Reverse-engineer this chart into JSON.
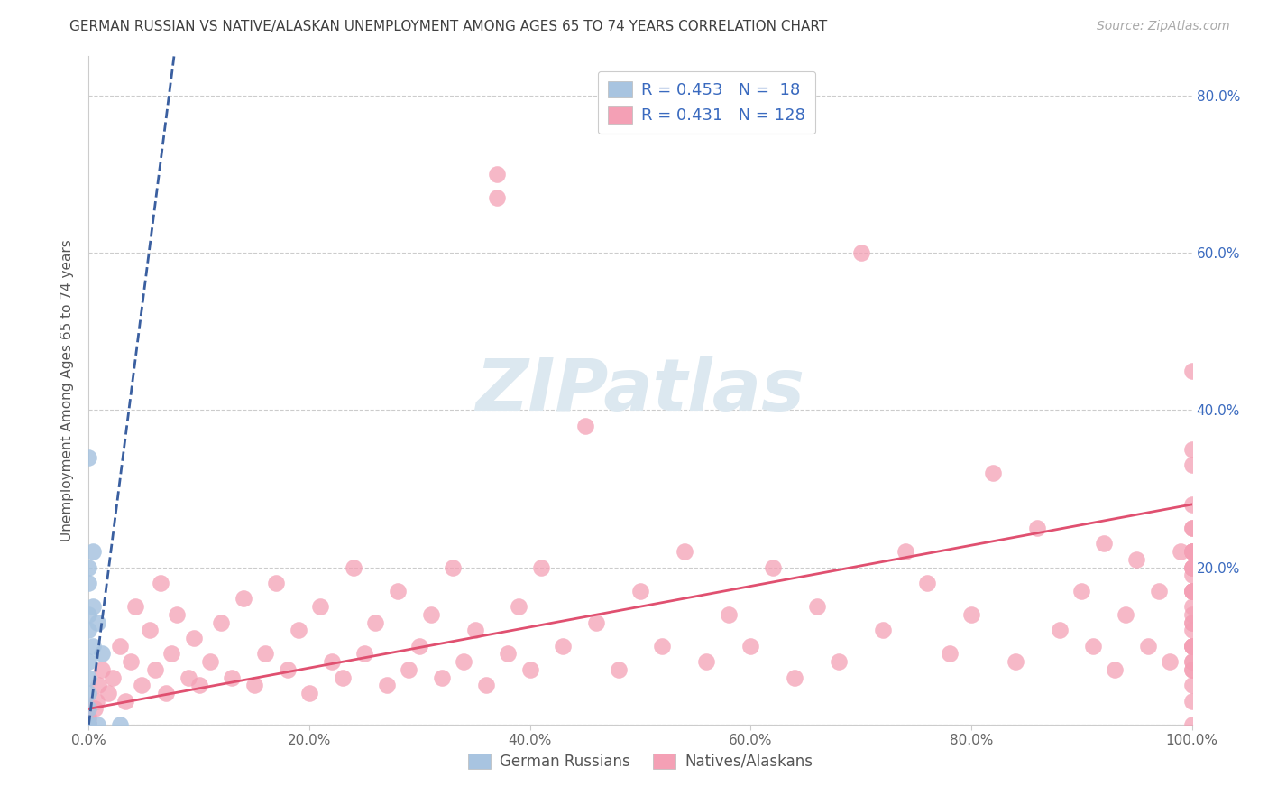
{
  "title": "GERMAN RUSSIAN VS NATIVE/ALASKAN UNEMPLOYMENT AMONG AGES 65 TO 74 YEARS CORRELATION CHART",
  "source": "Source: ZipAtlas.com",
  "ylabel": "Unemployment Among Ages 65 to 74 years",
  "ytick_values": [
    0.0,
    0.2,
    0.4,
    0.6,
    0.8
  ],
  "ytick_labels_right": [
    "",
    "20.0%",
    "40.0%",
    "60.0%",
    "80.0%"
  ],
  "xtick_values": [
    0.0,
    0.2,
    0.4,
    0.6,
    0.8,
    1.0
  ],
  "xtick_labels": [
    "0.0%",
    "20.0%",
    "40.0%",
    "60.0%",
    "80.0%",
    "100.0%"
  ],
  "xlim": [
    0,
    1.0
  ],
  "ylim": [
    0,
    0.85
  ],
  "legend_label1": "German Russians",
  "legend_label2": "Natives/Alaskans",
  "R1": "0.453",
  "N1": "18",
  "R2": "0.431",
  "N2": "128",
  "blue_color": "#a8c4e0",
  "blue_line_color": "#3a5fa0",
  "pink_color": "#f4a0b5",
  "pink_line_color": "#e05070",
  "title_color": "#404040",
  "source_color": "#aaaaaa",
  "legend_R_color": "#3a6abf",
  "background_color": "#ffffff",
  "watermark_color": "#dce8f0",
  "gr_x": [
    0.0,
    0.0,
    0.0,
    0.0,
    0.0,
    0.0,
    0.0,
    0.0,
    0.0,
    0.0,
    0.004,
    0.004,
    0.004,
    0.008,
    0.008,
    0.012,
    0.0,
    0.028
  ],
  "gr_y": [
    0.0,
    0.0,
    0.02,
    0.04,
    0.06,
    0.08,
    0.12,
    0.14,
    0.18,
    0.2,
    0.1,
    0.15,
    0.22,
    0.0,
    0.13,
    0.09,
    0.34,
    0.0
  ],
  "nat_x": [
    0.0,
    0.0,
    0.0,
    0.0,
    0.0,
    0.0,
    0.0,
    0.0,
    0.005,
    0.007,
    0.009,
    0.012,
    0.018,
    0.022,
    0.028,
    0.033,
    0.038,
    0.042,
    0.048,
    0.055,
    0.06,
    0.065,
    0.07,
    0.075,
    0.08,
    0.09,
    0.095,
    0.1,
    0.11,
    0.12,
    0.13,
    0.14,
    0.15,
    0.16,
    0.17,
    0.18,
    0.19,
    0.2,
    0.21,
    0.22,
    0.23,
    0.24,
    0.25,
    0.26,
    0.27,
    0.28,
    0.29,
    0.3,
    0.31,
    0.32,
    0.33,
    0.34,
    0.35,
    0.36,
    0.37,
    0.37,
    0.38,
    0.39,
    0.4,
    0.41,
    0.43,
    0.45,
    0.46,
    0.48,
    0.5,
    0.52,
    0.54,
    0.56,
    0.58,
    0.6,
    0.62,
    0.64,
    0.66,
    0.68,
    0.7,
    0.72,
    0.74,
    0.76,
    0.78,
    0.8,
    0.82,
    0.84,
    0.86,
    0.88,
    0.9,
    0.91,
    0.92,
    0.93,
    0.94,
    0.95,
    0.96,
    0.97,
    0.98,
    0.99,
    1.0,
    1.0,
    1.0,
    1.0,
    1.0,
    1.0,
    1.0,
    1.0,
    1.0,
    1.0,
    1.0,
    1.0,
    1.0,
    1.0,
    1.0,
    1.0,
    1.0,
    1.0,
    1.0,
    1.0,
    1.0,
    1.0,
    1.0,
    1.0,
    1.0,
    1.0,
    1.0,
    1.0,
    1.0,
    1.0,
    1.0,
    1.0,
    1.0,
    1.0
  ],
  "nat_y": [
    0.0,
    0.0,
    0.0,
    0.0,
    0.0,
    0.0,
    0.005,
    0.01,
    0.02,
    0.03,
    0.05,
    0.07,
    0.04,
    0.06,
    0.1,
    0.03,
    0.08,
    0.15,
    0.05,
    0.12,
    0.07,
    0.18,
    0.04,
    0.09,
    0.14,
    0.06,
    0.11,
    0.05,
    0.08,
    0.13,
    0.06,
    0.16,
    0.05,
    0.09,
    0.18,
    0.07,
    0.12,
    0.04,
    0.15,
    0.08,
    0.06,
    0.2,
    0.09,
    0.13,
    0.05,
    0.17,
    0.07,
    0.1,
    0.14,
    0.06,
    0.2,
    0.08,
    0.12,
    0.05,
    0.67,
    0.7,
    0.09,
    0.15,
    0.07,
    0.2,
    0.1,
    0.38,
    0.13,
    0.07,
    0.17,
    0.1,
    0.22,
    0.08,
    0.14,
    0.1,
    0.2,
    0.06,
    0.15,
    0.08,
    0.6,
    0.12,
    0.22,
    0.18,
    0.09,
    0.14,
    0.32,
    0.08,
    0.25,
    0.12,
    0.17,
    0.1,
    0.23,
    0.07,
    0.14,
    0.21,
    0.1,
    0.17,
    0.08,
    0.22,
    0.0,
    0.03,
    0.05,
    0.07,
    0.1,
    0.13,
    0.17,
    0.2,
    0.22,
    0.25,
    0.28,
    0.08,
    0.12,
    0.17,
    0.22,
    0.07,
    0.14,
    0.33,
    0.1,
    0.2,
    0.45,
    0.17,
    0.22,
    0.1,
    0.2,
    0.35,
    0.13,
    0.19,
    0.25,
    0.08,
    0.15,
    0.22,
    0.17,
    0.1
  ],
  "pink_slope": 0.26,
  "pink_intercept": 0.02,
  "blue_slope": 11.0,
  "blue_intercept": 0.0,
  "blue_line_xmax": 0.078
}
